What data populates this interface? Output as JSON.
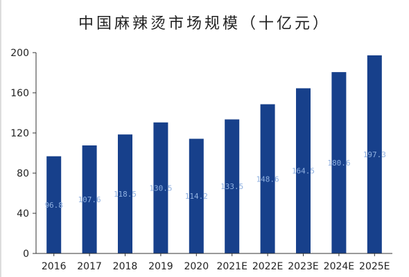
{
  "chart_data": {
    "type": "bar",
    "title": "中国麻辣烫市场规模（十亿元）",
    "categories": [
      "2016",
      "2017",
      "2018",
      "2019",
      "2020",
      "2021E",
      "2022E",
      "2023E",
      "2024E",
      "2025E"
    ],
    "values": [
      96.8,
      107.6,
      118.5,
      130.5,
      114.2,
      133.5,
      148.6,
      164.5,
      180.6,
      197.3
    ],
    "data_labels": [
      "96.8",
      "107.6",
      "118.5",
      "130.5",
      "114.2",
      "133.5",
      "148.6",
      "164.5",
      "180.6",
      "197.3"
    ],
    "yticks": [
      "0",
      "40",
      "80",
      "120",
      "160",
      "200"
    ],
    "ylim": [
      0,
      200
    ],
    "grid": false,
    "legend": "none",
    "bar_color": "#17408b",
    "label_color": "#8fb0e0",
    "axis_color": "#333333"
  }
}
